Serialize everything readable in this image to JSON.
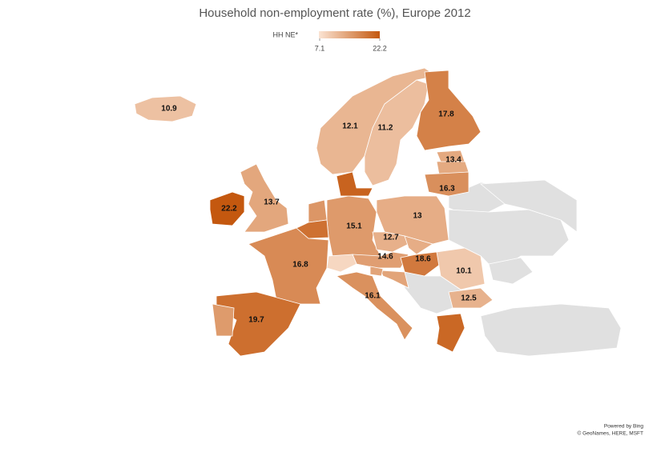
{
  "chart_data": {
    "type": "map",
    "title": "Household non-employment rate (%), Europe 2012",
    "legend_title": "HH NE*",
    "colorlim": [
      7.1,
      22.2
    ],
    "colors": [
      "#fbe4d3",
      "#c4580f"
    ],
    "nodata_color": "#e0e0e0",
    "values": [
      10.9,
      12.1,
      11.2,
      17.8,
      13.4,
      16.3,
      13.7,
      22.2,
      15.1,
      13.0,
      12.7,
      16.8,
      14.6,
      18.6,
      10.1,
      16.1,
      12.5,
      19.7
    ],
    "unlabeled_values": [
      21.0,
      13.5,
      15.5,
      19.5,
      15.0,
      20.5,
      13.0,
      8.5,
      14.0,
      14.0
    ],
    "credits": [
      "Powered by Bing",
      "© GeoNames, HERE, MSFT"
    ]
  }
}
